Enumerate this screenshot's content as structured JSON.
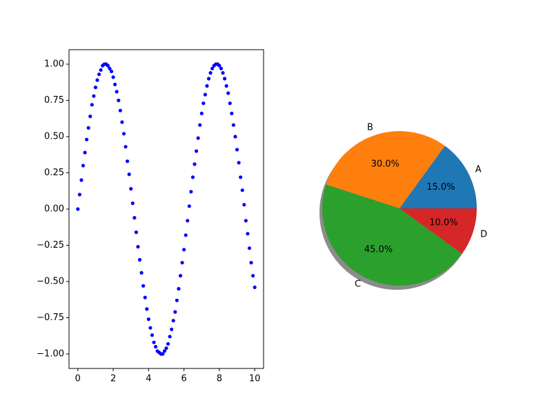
{
  "chart_data": [
    {
      "type": "scatter",
      "color": "blue",
      "x": [
        0,
        0.1,
        0.2,
        0.3,
        0.4,
        0.5,
        0.6,
        0.7,
        0.8,
        0.9,
        1,
        1.1,
        1.2,
        1.3,
        1.4,
        1.5,
        1.6,
        1.7,
        1.8,
        1.9,
        2,
        2.1,
        2.2,
        2.3,
        2.4,
        2.5,
        2.6,
        2.7,
        2.8,
        2.9,
        3,
        3.1,
        3.2,
        3.3,
        3.4,
        3.5,
        3.6,
        3.7,
        3.8,
        3.9,
        4,
        4.1,
        4.2,
        4.3,
        4.4,
        4.5,
        4.6,
        4.7,
        4.8,
        4.9,
        5,
        5.1,
        5.2,
        5.3,
        5.4,
        5.5,
        5.6,
        5.7,
        5.8,
        5.9,
        6,
        6.1,
        6.2,
        6.3,
        6.4,
        6.5,
        6.6,
        6.7,
        6.8,
        6.9,
        7,
        7.1,
        7.2,
        7.3,
        7.4,
        7.5,
        7.6,
        7.7,
        7.8,
        7.9,
        8,
        8.1,
        8.2,
        8.3,
        8.4,
        8.5,
        8.6,
        8.7,
        8.8,
        8.9,
        9,
        9.1,
        9.2,
        9.3,
        9.4,
        9.5,
        9.6,
        9.7,
        9.8,
        9.9,
        10
      ],
      "values": [
        0,
        0.1,
        0.2,
        0.3,
        0.39,
        0.48,
        0.56,
        0.64,
        0.72,
        0.78,
        0.84,
        0.89,
        0.93,
        0.96,
        0.99,
        1,
        1,
        0.99,
        0.97,
        0.95,
        0.91,
        0.86,
        0.81,
        0.75,
        0.68,
        0.6,
        0.52,
        0.43,
        0.33,
        0.24,
        0.14,
        0.04,
        -0.06,
        -0.16,
        -0.26,
        -0.35,
        -0.44,
        -0.53,
        -0.61,
        -0.69,
        -0.76,
        -0.82,
        -0.87,
        -0.92,
        -0.95,
        -0.98,
        -0.99,
        -1,
        -1,
        -0.98,
        -0.96,
        -0.93,
        -0.88,
        -0.83,
        -0.77,
        -0.71,
        -0.63,
        -0.55,
        -0.46,
        -0.37,
        -0.28,
        -0.18,
        -0.08,
        0.02,
        0.12,
        0.22,
        0.31,
        0.4,
        0.49,
        0.58,
        0.66,
        0.73,
        0.79,
        0.85,
        0.9,
        0.94,
        0.97,
        0.99,
        1,
        1,
        0.99,
        0.97,
        0.94,
        0.9,
        0.85,
        0.8,
        0.73,
        0.66,
        0.58,
        0.5,
        0.41,
        0.32,
        0.22,
        0.13,
        0.03,
        -0.08,
        -0.17,
        -0.27,
        -0.37,
        -0.46,
        -0.54
      ],
      "xlim": [
        -0.5,
        10.5
      ],
      "xticks": [
        0,
        2,
        4,
        6,
        8,
        10
      ],
      "ylim": [
        -1.1,
        1.1
      ],
      "yticks": [
        {
          "value": -1,
          "label": "−1.00"
        },
        {
          "value": -0.75,
          "label": "−0.75"
        },
        {
          "value": -0.5,
          "label": "−0.50"
        },
        {
          "value": -0.25,
          "label": "−0.25"
        },
        {
          "value": 0,
          "label": "0.00"
        },
        {
          "value": 0.25,
          "label": "0.25"
        },
        {
          "value": 0.5,
          "label": "0.50"
        },
        {
          "value": 0.75,
          "label": "0.75"
        },
        {
          "value": 1,
          "label": "1.00"
        }
      ],
      "grid": false
    },
    {
      "type": "pie",
      "categories": [
        "A",
        "B",
        "C",
        "D"
      ],
      "values": [
        15,
        30,
        45,
        10
      ],
      "value_labels": [
        "15.0%",
        "30.0%",
        "45.0%",
        "10.0%"
      ],
      "colors": [
        "#1f77b4",
        "#ff7f0e",
        "#2ca02c",
        "#d62728"
      ],
      "shadow": true
    }
  ]
}
